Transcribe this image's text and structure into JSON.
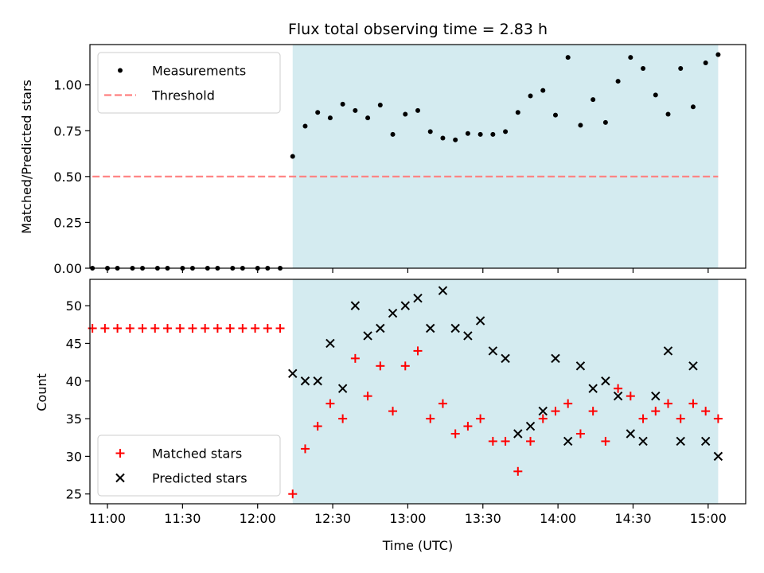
{
  "chart_data": [
    {
      "type": "scatter",
      "title": "Flux total observing time = 2.83 h",
      "xlabel": "",
      "ylabel": "Matched/Predicted stars",
      "ylim": [
        0.0,
        1.22
      ],
      "yticks": [
        "0.00",
        "0.25",
        "0.50",
        "0.75",
        "1.00"
      ],
      "xlim": [
        "10:53",
        "15:15"
      ],
      "shaded_region": [
        "12:14",
        "15:04"
      ],
      "shade_color": "#d4ebf0",
      "legend": "top-left",
      "series": [
        {
          "name": "Measurements",
          "color": "#000000",
          "marker": "dot",
          "x": [
            "10:54",
            "11:00",
            "11:04",
            "11:10",
            "11:14",
            "11:20",
            "11:24",
            "11:30",
            "11:34",
            "11:40",
            "11:44",
            "11:50",
            "11:54",
            "12:00",
            "12:04",
            "12:09",
            "12:14",
            "12:19",
            "12:24",
            "12:29",
            "12:34",
            "12:39",
            "12:44",
            "12:49",
            "12:54",
            "12:59",
            "13:04",
            "13:09",
            "13:14",
            "13:19",
            "13:24",
            "13:29",
            "13:34",
            "13:39",
            "13:44",
            "13:49",
            "13:54",
            "13:59",
            "14:04",
            "14:09",
            "14:14",
            "14:19",
            "14:24",
            "14:29",
            "14:34",
            "14:39",
            "14:44",
            "14:49",
            "14:54",
            "14:59",
            "15:04"
          ],
          "y": [
            0,
            0,
            0,
            0,
            0,
            0,
            0,
            0,
            0,
            0,
            0,
            0,
            0,
            0,
            0,
            0,
            0.61,
            0.775,
            0.85,
            0.82,
            0.895,
            0.86,
            0.82,
            0.89,
            0.73,
            0.84,
            0.86,
            0.745,
            0.71,
            0.7,
            0.735,
            0.73,
            0.73,
            0.745,
            0.85,
            0.94,
            0.97,
            0.835,
            1.15,
            0.78,
            0.92,
            0.795,
            1.02,
            1.15,
            1.09,
            0.945,
            0.84,
            1.09,
            0.88,
            1.12,
            1.165
          ]
        },
        {
          "name": "Threshold",
          "color": "#ff8080",
          "style": "dashed",
          "x": [
            "10:54",
            "15:04"
          ],
          "y": [
            0.5,
            0.5
          ]
        }
      ]
    },
    {
      "type": "scatter",
      "title": "",
      "xlabel": "Time (UTC)",
      "ylabel": "Count",
      "ylim": [
        23.7,
        53.5
      ],
      "yticks": [
        "25",
        "30",
        "35",
        "40",
        "45",
        "50"
      ],
      "xlim": [
        "10:53",
        "15:15"
      ],
      "xticks": [
        "11:00",
        "11:30",
        "12:00",
        "12:30",
        "13:00",
        "13:30",
        "14:00",
        "14:30",
        "15:00"
      ],
      "shaded_region": [
        "12:14",
        "15:04"
      ],
      "shade_color": "#d4ebf0",
      "legend": "bottom-left",
      "series": [
        {
          "name": "Matched stars",
          "color": "#ff0000",
          "marker": "plus",
          "x": [
            "10:54",
            "10:59",
            "11:04",
            "11:09",
            "11:14",
            "11:19",
            "11:24",
            "11:29",
            "11:34",
            "11:39",
            "11:44",
            "11:49",
            "11:54",
            "11:59",
            "12:04",
            "12:09",
            "12:14",
            "12:19",
            "12:24",
            "12:29",
            "12:34",
            "12:39",
            "12:44",
            "12:49",
            "12:54",
            "12:59",
            "13:04",
            "13:09",
            "13:14",
            "13:19",
            "13:24",
            "13:29",
            "13:34",
            "13:39",
            "13:44",
            "13:49",
            "13:54",
            "13:59",
            "14:04",
            "14:09",
            "14:14",
            "14:19",
            "14:24",
            "14:29",
            "14:34",
            "14:39",
            "14:44",
            "14:49",
            "14:54",
            "14:59",
            "15:04"
          ],
          "y": [
            47,
            47,
            47,
            47,
            47,
            47,
            47,
            47,
            47,
            47,
            47,
            47,
            47,
            47,
            47,
            47,
            25,
            31,
            34,
            37,
            35,
            43,
            38,
            42,
            36,
            42,
            44,
            35,
            37,
            33,
            34,
            35,
            32,
            32,
            28,
            32,
            35,
            36,
            37,
            33,
            36,
            32,
            39,
            38,
            35,
            36,
            37,
            35,
            37,
            36,
            35
          ]
        },
        {
          "name": "Predicted stars",
          "color": "#000000",
          "marker": "x",
          "x": [
            "12:14",
            "12:19",
            "12:24",
            "12:29",
            "12:34",
            "12:39",
            "12:44",
            "12:49",
            "12:54",
            "12:59",
            "13:04",
            "13:09",
            "13:14",
            "13:19",
            "13:24",
            "13:29",
            "13:34",
            "13:39",
            "13:44",
            "13:49",
            "13:54",
            "13:59",
            "14:04",
            "14:09",
            "14:14",
            "14:19",
            "14:24",
            "14:29",
            "14:34",
            "14:39",
            "14:44",
            "14:49",
            "14:54",
            "14:59",
            "15:04"
          ],
          "y": [
            41,
            40,
            40,
            45,
            39,
            50,
            46,
            47,
            49,
            50,
            51,
            47,
            52,
            47,
            46,
            48,
            44,
            43,
            33,
            34,
            36,
            43,
            32,
            42,
            39,
            40,
            38,
            33,
            32,
            38,
            44,
            32,
            42,
            32,
            30
          ]
        }
      ]
    }
  ]
}
